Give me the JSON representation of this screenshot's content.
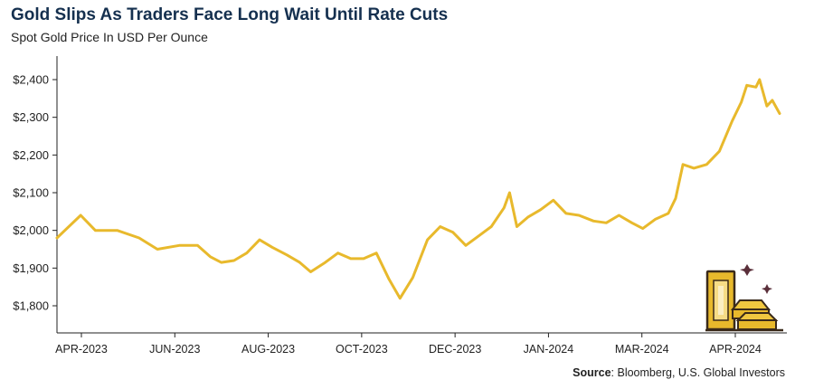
{
  "chart_data": {
    "type": "line",
    "title": "Gold Slips As Traders Face Long Wait Until Rate Cuts",
    "subtitle": "Spot Gold Price In USD Per Ounce",
    "source_label": "Source",
    "source_text": ": Bloomberg, U.S. Global Investors",
    "ylim": [
      1750,
      2460
    ],
    "y_ticks": [
      1800,
      1900,
      2000,
      2100,
      2200,
      2300,
      2400
    ],
    "y_tick_labels": [
      "$1,800",
      "$1,900",
      "$2,000",
      "$2,100",
      "$2,200",
      "$2,300",
      "$2,400"
    ],
    "x_tick_labels": [
      "APR-2023",
      "JUN-2023",
      "AUG-2023",
      "OCT-2023",
      "DEC-2023",
      "JAN-2024",
      "MAR-2024",
      "APR-2024"
    ],
    "grid": false,
    "line_color": "#e8b92c",
    "series": [
      {
        "x": [
          "2023-03-31",
          "2023-04-13",
          "2023-04-21",
          "2023-05-03",
          "2023-05-15",
          "2023-05-25",
          "2023-06-06",
          "2023-06-16",
          "2023-06-23",
          "2023-06-29",
          "2023-07-06",
          "2023-07-13",
          "2023-07-20",
          "2023-07-27",
          "2023-08-04",
          "2023-08-11",
          "2023-08-17",
          "2023-08-25",
          "2023-09-01",
          "2023-09-08",
          "2023-09-15",
          "2023-09-22",
          "2023-09-29",
          "2023-10-05",
          "2023-10-12",
          "2023-10-20",
          "2023-10-27",
          "2023-11-03",
          "2023-11-10",
          "2023-11-17",
          "2023-11-24",
          "2023-12-01",
          "2023-12-04",
          "2023-12-08",
          "2023-12-14",
          "2023-12-21",
          "2023-12-28",
          "2024-01-04",
          "2024-01-11",
          "2024-01-19",
          "2024-01-26",
          "2024-02-02",
          "2024-02-09",
          "2024-02-15",
          "2024-02-22",
          "2024-02-29",
          "2024-03-04",
          "2024-03-08",
          "2024-03-14",
          "2024-03-21",
          "2024-03-28",
          "2024-04-04",
          "2024-04-09",
          "2024-04-12",
          "2024-04-17",
          "2024-04-19",
          "2024-04-23",
          "2024-04-26",
          "2024-04-30"
        ],
        "values": [
          1980,
          2040,
          2000,
          2000,
          1980,
          1950,
          1960,
          1960,
          1930,
          1915,
          1920,
          1940,
          1975,
          1955,
          1935,
          1915,
          1890,
          1915,
          1940,
          1925,
          1925,
          1940,
          1870,
          1820,
          1875,
          1975,
          2010,
          1995,
          1960,
          1985,
          2010,
          2060,
          2100,
          2010,
          2035,
          2055,
          2080,
          2045,
          2040,
          2025,
          2020,
          2040,
          2020,
          2005,
          2030,
          2045,
          2085,
          2175,
          2165,
          2175,
          2210,
          2290,
          2340,
          2385,
          2380,
          2400,
          2330,
          2345,
          2310
        ]
      }
    ]
  }
}
